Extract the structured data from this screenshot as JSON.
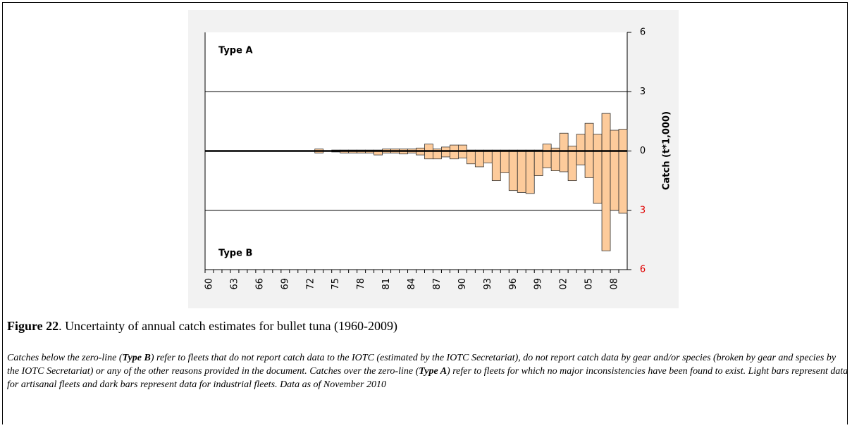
{
  "chart_data": {
    "type": "bar",
    "y_label": "Catch (t*1,000)",
    "categories": [
      "60",
      null,
      null,
      "63",
      null,
      null,
      "66",
      null,
      null,
      "69",
      null,
      null,
      "72",
      null,
      null,
      "75",
      null,
      null,
      "78",
      null,
      null,
      "81",
      null,
      null,
      "84",
      null,
      null,
      "87",
      null,
      null,
      "90",
      null,
      null,
      "93",
      null,
      null,
      "96",
      null,
      null,
      "99",
      null,
      null,
      "02",
      null,
      null,
      "05",
      null,
      null,
      "08",
      null
    ],
    "series": [
      {
        "name": "Type A",
        "color": "#fdcb9b",
        "values": [
          0,
          0,
          0,
          0,
          0,
          0,
          0,
          0,
          0,
          0,
          0,
          0,
          0,
          0.1,
          0,
          0.05,
          0.05,
          0.05,
          0.05,
          0.05,
          0.05,
          0.1,
          0.1,
          0.1,
          0.1,
          0.15,
          0.35,
          0.1,
          0.2,
          0.3,
          0.3,
          0.05,
          0.05,
          0.05,
          0.05,
          0.05,
          0.05,
          0.05,
          0.05,
          0.05,
          0.35,
          0.15,
          0.9,
          0.25,
          0.85,
          1.4,
          0.85,
          1.9,
          1.05,
          1.1
        ]
      },
      {
        "name": "Type B",
        "color": "#fdcb9b",
        "values": [
          0,
          0,
          0,
          0,
          0,
          0,
          0,
          0,
          0,
          0,
          0,
          0,
          0,
          -0.1,
          0,
          -0.05,
          -0.1,
          -0.1,
          -0.1,
          -0.1,
          -0.2,
          -0.1,
          -0.1,
          -0.15,
          -0.1,
          -0.2,
          -0.4,
          -0.4,
          -0.3,
          -0.4,
          -0.35,
          -0.65,
          -0.8,
          -0.6,
          -1.5,
          -1.1,
          -2.0,
          -2.1,
          -2.15,
          -1.25,
          -0.85,
          -1.0,
          -1.05,
          -1.5,
          -0.7,
          -1.35,
          -2.65,
          -5.05,
          -3.0,
          -3.15
        ]
      }
    ],
    "ylim": [
      -6,
      6
    ],
    "yticks": [
      {
        "value": -6,
        "label": "6"
      },
      {
        "value": -3,
        "label": "3"
      },
      0,
      3,
      6
    ],
    "negative_tick_color": "#e00000",
    "grid": true
  },
  "caption": {
    "label": "Figure 22",
    "text": ". Uncertainty of annual catch estimates for bullet tuna (1960-2009)"
  },
  "note": [
    "Catches below the zero-line (",
    "Type B",
    ") refer to fleets that do not report catch data to the IOTC (estimated by the IOTC Secretariat), do not report catch data by gear and/or species (broken by gear and species by the IOTC Secretariat) or any of the other reasons provided in the document. Catches over the zero-line (",
    "Type A",
    ") refer to fleets for which no major inconsistencies have been found to exist. Light bars represent data for artisanal fleets and dark bars represent data for industrial fleets. Data as of November 2010"
  ]
}
